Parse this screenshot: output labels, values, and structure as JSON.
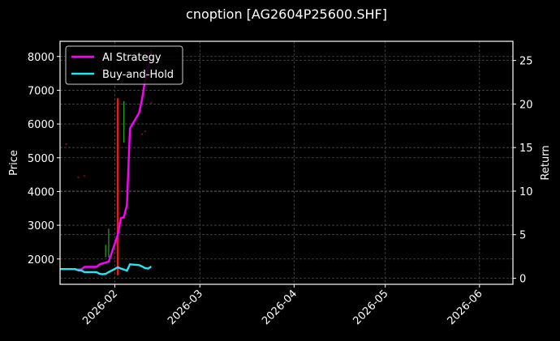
{
  "title": "cnoption [AG2604P25600.SHF]",
  "chart_data": {
    "type": "line",
    "title": "cnoption [AG2604P25600.SHF]",
    "xlabel": "",
    "ylabel": "Price",
    "ylabel_right": "Return",
    "ylim": [
      1250,
      8450
    ],
    "ylim_right": [
      -0.7,
      27.2
    ],
    "xlim": [
      "2026-01-14",
      "2026-06-12"
    ],
    "x_ticks": [
      "2026-02",
      "2026-03",
      "2026-04",
      "2026-05",
      "2026-06"
    ],
    "y_ticks": [
      2000,
      3000,
      4000,
      5000,
      6000,
      7000,
      8000
    ],
    "y_ticks_right": [
      0,
      5,
      10,
      15,
      20,
      25
    ],
    "grid": true,
    "legend_position": "upper left",
    "series": [
      {
        "name": "AI Strategy",
        "axis": "right",
        "color": "#ff00ff",
        "x": [
          "2026-01-19",
          "2026-01-20",
          "2026-01-21",
          "2026-01-22",
          "2026-01-23",
          "2026-01-26",
          "2026-01-27",
          "2026-01-28",
          "2026-01-29",
          "2026-01-30",
          "2026-02-02",
          "2026-02-03",
          "2026-02-04",
          "2026-02-05",
          "2026-02-06",
          "2026-02-09",
          "2026-02-10",
          "2026-02-11",
          "2026-02-12",
          "2026-02-13"
        ],
        "values": [
          1.0,
          1.0,
          1.0,
          1.3,
          1.3,
          1.3,
          1.6,
          1.7,
          1.8,
          1.9,
          5.0,
          6.9,
          7.0,
          8.4,
          17.2,
          19.0,
          20.6,
          22.8,
          24.0,
          26.2
        ]
      },
      {
        "name": "Buy-and-Hold",
        "axis": "right",
        "color": "#22e6f0",
        "x": [
          "2026-01-14",
          "2026-01-15",
          "2026-01-16",
          "2026-01-19",
          "2026-01-20",
          "2026-01-21",
          "2026-01-22",
          "2026-01-23",
          "2026-01-26",
          "2026-01-27",
          "2026-01-28",
          "2026-01-29",
          "2026-01-30",
          "2026-02-02",
          "2026-02-03",
          "2026-02-04",
          "2026-02-05",
          "2026-02-06",
          "2026-02-09",
          "2026-02-10",
          "2026-02-11",
          "2026-02-12",
          "2026-02-13"
        ],
        "values": [
          1.05,
          1.05,
          1.05,
          1.05,
          0.9,
          0.9,
          0.7,
          0.7,
          0.7,
          0.5,
          0.45,
          0.5,
          0.7,
          1.25,
          1.1,
          1.0,
          0.85,
          1.6,
          1.5,
          1.35,
          1.15,
          1.1,
          1.35
        ]
      }
    ],
    "candles": [
      {
        "x": "2026-01-29",
        "low": 2050,
        "high": 2420,
        "color": "#22a822"
      },
      {
        "x": "2026-01-30",
        "low": 2050,
        "high": 2900,
        "color": "#22a822"
      },
      {
        "x": "2026-02-02",
        "low": 1520,
        "high": 6760,
        "color": "#e02020"
      },
      {
        "x": "2026-02-04",
        "low": 5450,
        "high": 6680,
        "color": "#22a822"
      }
    ],
    "markers": [
      {
        "x": "2026-01-16",
        "y": 5400,
        "color": "#7a1010"
      },
      {
        "x": "2026-01-20",
        "y": 4420,
        "color": "#7a1010"
      },
      {
        "x": "2026-01-22",
        "y": 4460,
        "color": "#7a1010"
      },
      {
        "x": "2026-02-10",
        "y": 5700,
        "color": "#7a1010"
      },
      {
        "x": "2026-02-11",
        "y": 5780,
        "color": "#7a1010"
      },
      {
        "x": "2026-02-13",
        "y": 6620,
        "color": "#7a1010"
      }
    ]
  },
  "legend": {
    "items": [
      {
        "label": "AI Strategy",
        "color": "#ff00ff"
      },
      {
        "label": "Buy-and-Hold",
        "color": "#22e6f0"
      }
    ]
  },
  "colors": {
    "background": "#000000",
    "axes": "#ffffff",
    "grid": "#4a4a4a",
    "text": "#ffffff"
  }
}
